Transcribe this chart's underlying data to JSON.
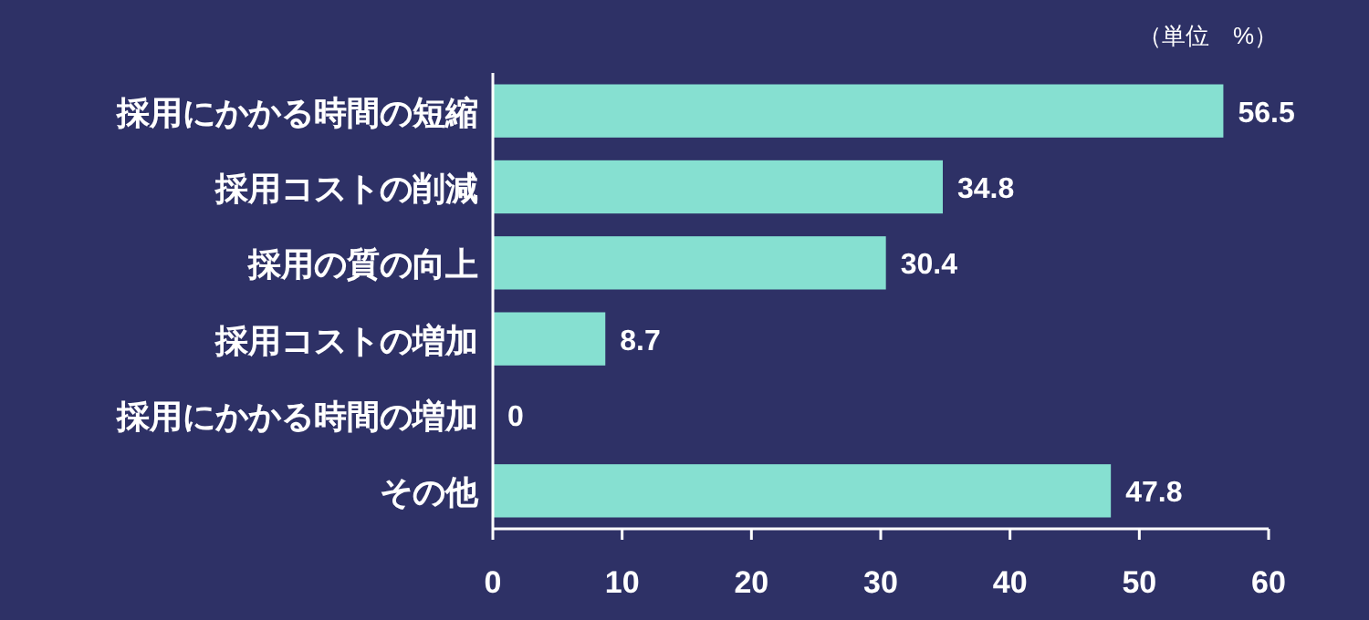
{
  "chart_data": {
    "type": "bar",
    "orientation": "horizontal",
    "categories": [
      "採用にかかる時間の短縮",
      "採用コストの削減",
      "採用の質の向上",
      "採用コストの増加",
      "採用にかかる時間の増加",
      "その他"
    ],
    "values": [
      56.5,
      34.8,
      30.4,
      8.7,
      0,
      47.8
    ],
    "color": "#86e0d1",
    "xlim": [
      0,
      60
    ],
    "xticks": [
      0,
      10,
      20,
      30,
      40,
      50,
      60
    ],
    "data_labels": true,
    "grid": false,
    "annotations": [
      "（単位　%）"
    ]
  }
}
